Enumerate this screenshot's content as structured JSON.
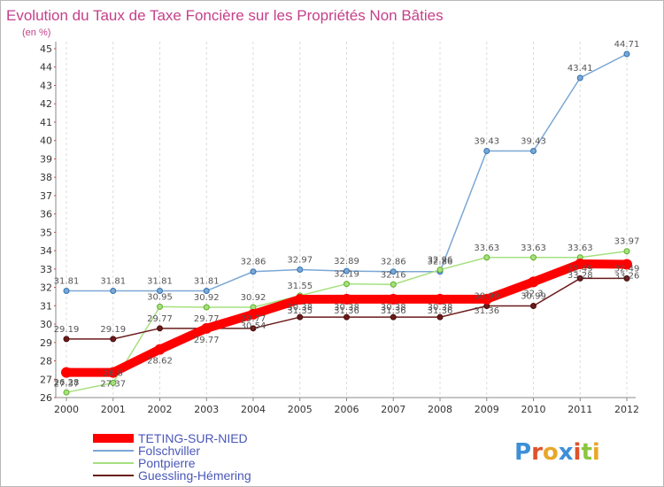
{
  "title": "Evolution du Taux de Taxe Foncière sur les Propriétés Non Bâties",
  "subtitle": "(en %)",
  "brand": {
    "text": "Proxiti"
  },
  "chart_data": {
    "type": "line",
    "title": "Evolution du Taux de Taxe Foncière sur les Propriétés Non Bâties",
    "ylabel": "(en %)",
    "xlabel": "",
    "x": [
      "2000",
      "2001",
      "2002",
      "2003",
      "2004",
      "2005",
      "2006",
      "2007",
      "2008",
      "2009",
      "2010",
      "2011",
      "2012"
    ],
    "ylim": [
      26,
      45
    ],
    "y_ticks": [
      26,
      27,
      28,
      29,
      30,
      31,
      32,
      33,
      34,
      35,
      36,
      37,
      38,
      39,
      40,
      41,
      42,
      43,
      44,
      45
    ],
    "grid": "vertical",
    "legend_position": "bottom-left",
    "series": [
      {
        "name": "TETING-SUR-NIED",
        "color": "#ff0000",
        "values": [
          27.37,
          27.37,
          28.62,
          29.77,
          30.54,
          31.35,
          31.36,
          31.36,
          31.36,
          31.36,
          32.3,
          33.28,
          33.26
        ],
        "labels": [
          "27.37",
          "27.37",
          "28.62",
          "29.77",
          "30.54",
          "31.35",
          "31.36",
          "31.36",
          "31.36",
          "31.36",
          "32.3",
          "33.28",
          "33.26"
        ]
      },
      {
        "name": "Folschviller",
        "color": "#7ba7d4",
        "values": [
          31.81,
          31.81,
          31.81,
          31.81,
          32.86,
          32.97,
          32.89,
          32.86,
          32.86,
          39.43,
          39.43,
          43.41,
          44.71
        ],
        "labels": [
          "31.81",
          "31.81",
          "31.81",
          "31.81",
          "32.86",
          "32.97",
          "32.89",
          "32.86",
          "32.86",
          "39.43",
          "39.43",
          "43.41",
          "44.71"
        ]
      },
      {
        "name": "Pontpierre",
        "color": "#a6e07f",
        "values": [
          26.28,
          26.8,
          30.95,
          30.92,
          30.92,
          31.55,
          32.19,
          32.16,
          32.96,
          33.63,
          33.63,
          33.63,
          33.97
        ],
        "labels": [
          "26.28",
          "26.8",
          "30.95",
          "30.92",
          "30.92",
          "31.55",
          "32.19",
          "32.16",
          "32.96",
          "33.63",
          "33.63",
          "33.63",
          "33.97"
        ]
      },
      {
        "name": "Guessling-Hémering",
        "color": "#6b1a1a",
        "values": [
          29.19,
          29.19,
          29.77,
          29.77,
          29.77,
          30.38,
          30.38,
          30.38,
          30.38,
          30.99,
          30.99,
          32.49,
          32.49
        ],
        "labels": [
          "29.19",
          "29.19",
          "29.77",
          "29.77",
          "29.77",
          "30.38",
          "30.38",
          "30.38",
          "30.38",
          "30.99",
          "30.99",
          "32.49",
          "32.49"
        ]
      }
    ]
  }
}
